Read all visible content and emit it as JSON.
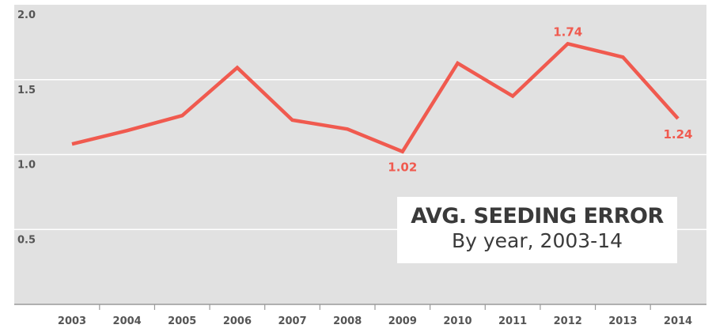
{
  "chart_data": {
    "type": "line",
    "title": "AVG. SEEDING ERROR",
    "subtitle": "By year, 2003-14",
    "categories": [
      "2003",
      "2004",
      "2005",
      "2006",
      "2007",
      "2008",
      "2009",
      "2010",
      "2011",
      "2012",
      "2013",
      "2014"
    ],
    "series": [
      {
        "values": [
          1.07,
          1.16,
          1.26,
          1.58,
          1.23,
          1.17,
          1.02,
          1.61,
          1.39,
          1.74,
          1.65,
          1.24
        ],
        "color": "#f05a4f"
      }
    ],
    "labeled_points": [
      {
        "category": "2009",
        "text": "1.02",
        "position": "below"
      },
      {
        "category": "2012",
        "text": "1.74",
        "position": "above"
      },
      {
        "category": "2014",
        "text": "1.24",
        "position": "below"
      }
    ],
    "y_ticks": [
      "2.0",
      "1.5",
      "1.0",
      "0.5"
    ],
    "y_tick_values": [
      2.0,
      1.5,
      1.0,
      0.5
    ],
    "ylim": [
      0,
      2.0
    ],
    "grid": "horizontal",
    "background_color": "#e1e1e1",
    "grid_color": "#ffffff",
    "text_color": "#555555"
  }
}
